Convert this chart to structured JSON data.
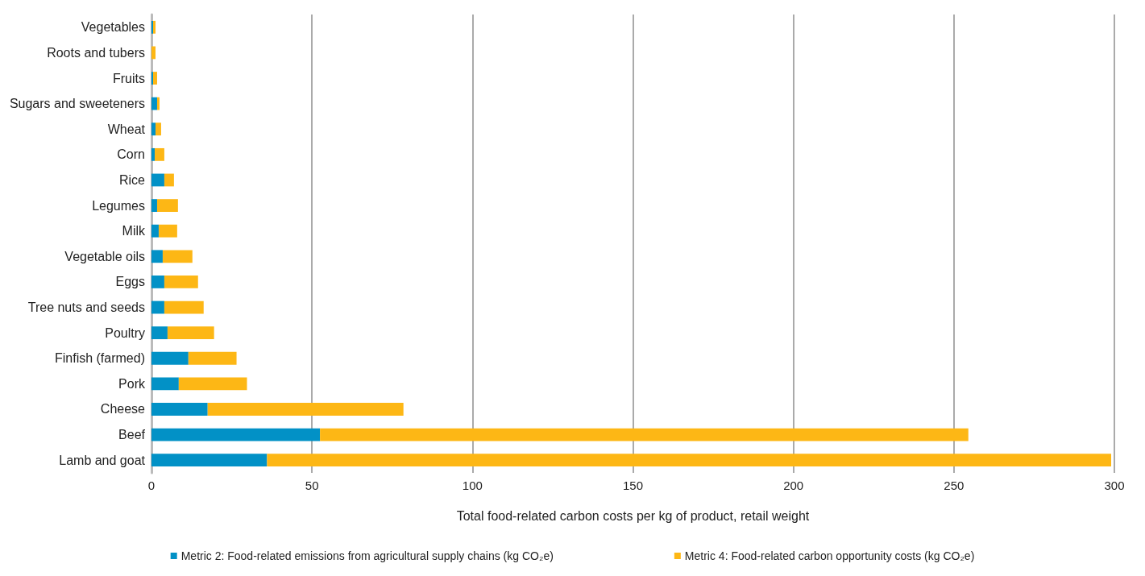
{
  "chart_data": {
    "type": "bar",
    "orientation": "horizontal",
    "stacked": true,
    "xlabel": "Total food-related carbon costs per kg of product, retail weight",
    "categories": [
      "Vegetables",
      "Roots and tubers",
      "Fruits",
      "Sugars and sweeteners",
      "Wheat",
      "Corn",
      "Rice",
      "Legumes",
      "Milk",
      "Vegetable oils",
      "Eggs",
      "Tree nuts and seeds",
      "Poultry",
      "Finfish (farmed)",
      "Pork",
      "Cheese",
      "Beef",
      "Lamb and goat"
    ],
    "series": [
      {
        "name": "Metric 2: Food-related emissions from agricultural supply chains (kg CO₂e)",
        "color": "#0291c6",
        "values": [
          0.5,
          0,
          0.5,
          1.75,
          1.25,
          1,
          4,
          1.75,
          2.25,
          3.5,
          4,
          4,
          5,
          11.5,
          8.5,
          17.5,
          52.5,
          36
        ]
      },
      {
        "name": "Metric 4: Food-related carbon opportunity costs (kg CO₂e)",
        "color": "#fdb715",
        "values": [
          0.75,
          1.25,
          1.25,
          0.75,
          1.75,
          3,
          3,
          6.5,
          5.75,
          9.25,
          10.5,
          12.25,
          14.5,
          15,
          21.25,
          61,
          202,
          263
        ]
      }
    ],
    "xlim": [
      0,
      300
    ],
    "xticks": [
      0,
      50,
      100,
      150,
      200,
      250,
      300
    ],
    "grid": "x",
    "legend": "bottom"
  }
}
